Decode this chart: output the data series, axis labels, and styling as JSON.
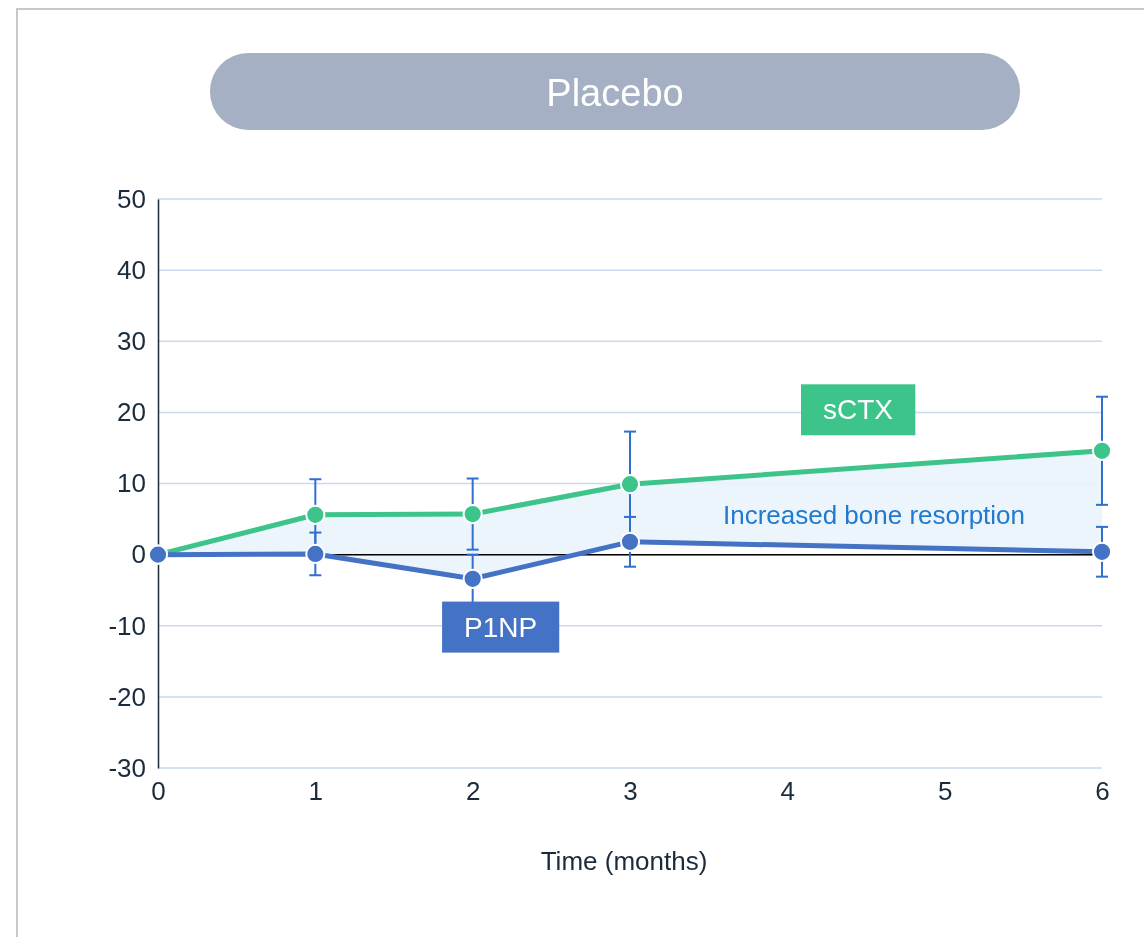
{
  "chart_data": {
    "type": "line",
    "title": "Placebo",
    "xlabel": "Time (months)",
    "x": [
      0,
      1,
      2,
      3,
      6
    ],
    "xlim": [
      0,
      6
    ],
    "xticks": [
      0,
      1,
      2,
      3,
      4,
      5,
      6
    ],
    "ylim": [
      -30,
      50
    ],
    "yticks": [
      -30,
      -20,
      -10,
      0,
      10,
      20,
      30,
      40,
      50
    ],
    "grid": "y",
    "marker": "circle",
    "line_style": "solid",
    "ref_lines": [
      {
        "axis": "y",
        "value": 0,
        "color": "#000000"
      }
    ],
    "annotations": [
      "Increased bone resorption"
    ],
    "series": [
      {
        "name": "sCTX",
        "color": "#3dc48b",
        "values": [
          0,
          5.6,
          5.7,
          9.9,
          14.6
        ],
        "errors": [
          null,
          5,
          5,
          7.4,
          7.6
        ],
        "lower": [
          0,
          0.1,
          -3.4,
          1.8,
          0.4
        ],
        "upper": [
          0,
          5.6,
          5.7,
          9.9,
          14.6
        ]
      },
      {
        "name": "P1NP",
        "color": "#4472c4",
        "values": [
          0,
          0.1,
          -3.4,
          1.8,
          0.4
        ],
        "errors": [
          null,
          3,
          3.4,
          3.5,
          3.5
        ]
      }
    ]
  }
}
